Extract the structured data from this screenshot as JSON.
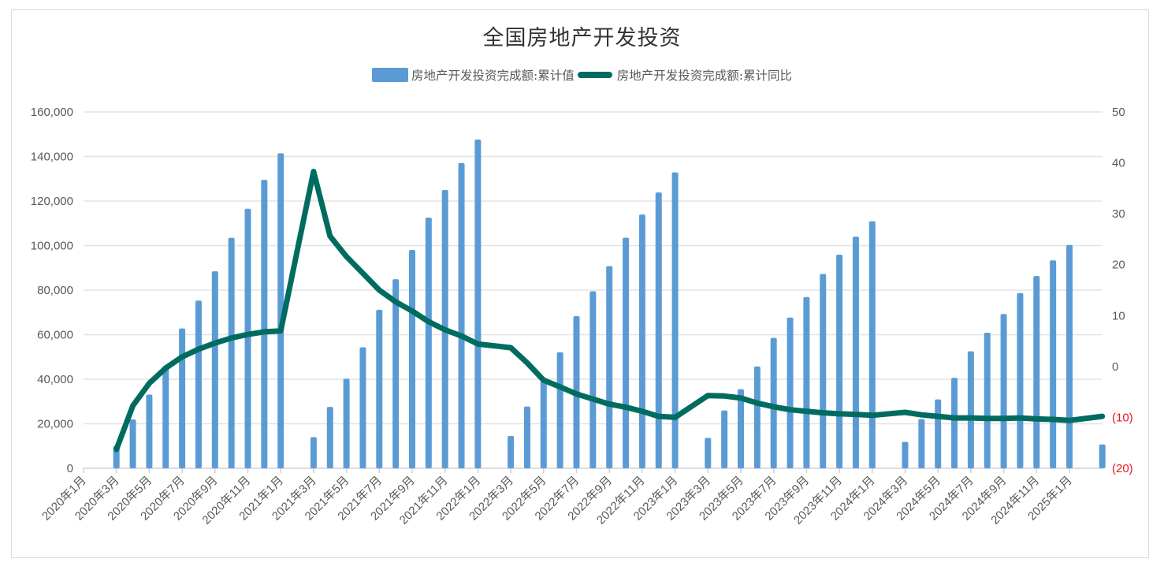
{
  "chart_data": {
    "type": "bar+line",
    "title": "全国房地产开发投资",
    "legend": [
      {
        "label": "房地产开发投资完成额:累计值",
        "kind": "bar",
        "color": "#5b9bd5"
      },
      {
        "label": "房地产开发投资完成额:累计同比",
        "kind": "line",
        "color": "#006c5f"
      }
    ],
    "legend_position": "top",
    "grid": true,
    "left_axis": {
      "ylim": [
        0,
        160000
      ],
      "ticks": [
        "0",
        "20,000",
        "40,000",
        "60,000",
        "80,000",
        "100,000",
        "120,000",
        "140,000",
        "160,000"
      ]
    },
    "right_axis": {
      "ylim": [
        -20,
        50
      ],
      "ticks": [
        "(20)",
        "(10)",
        "0",
        "10",
        "20",
        "30",
        "40",
        "50"
      ],
      "negative_color": "#e0191f"
    },
    "x_tick_labels": [
      "2020年1月",
      "2020年3月",
      "2020年5月",
      "2020年7月",
      "2020年9月",
      "2020年11月",
      "2021年1月",
      "2021年3月",
      "2021年5月",
      "2021年7月",
      "2021年9月",
      "2021年11月",
      "2022年1月",
      "2022年3月",
      "2022年5月",
      "2022年7月",
      "2022年9月",
      "2022年11月",
      "2023年1月",
      "2023年3月",
      "2023年5月",
      "2023年7月",
      "2023年9月",
      "2023年11月",
      "2024年1月",
      "2024年3月",
      "2024年5月",
      "2024年7月",
      "2024年9月",
      "2024年11月",
      "2025年1月"
    ],
    "categories_count": 63,
    "series": [
      {
        "name": "房地产开发投资完成额:累计值",
        "type": "bar",
        "axis": "left",
        "values": [
          null,
          null,
          10115,
          21963,
          33103,
          45920,
          62780,
          75325,
          88454,
          103484,
          116556,
          129492,
          141443,
          null,
          13986,
          27576,
          40240,
          54318,
          71179,
          84895,
          98059,
          112568,
          124934,
          137086,
          147602,
          null,
          14499,
          27765,
          39154,
          52134,
          68314,
          79462,
          90809,
          103559,
          113945,
          123863,
          132895,
          null,
          13669,
          25974,
          35514,
          45701,
          58550,
          67717,
          76900,
          87269,
          95922,
          104045,
          110913,
          null,
          11842,
          22082,
          30928,
          40632,
          52529,
          60877,
          69284,
          78680,
          86309,
          93362,
          100280,
          null,
          10720
        ]
      },
      {
        "name": "房地产开发投资完成额:累计同比",
        "type": "line",
        "axis": "right",
        "values": [
          null,
          null,
          -16.3,
          -7.7,
          -3.3,
          -0.3,
          1.9,
          3.4,
          4.6,
          5.6,
          6.3,
          6.8,
          7.0,
          null,
          38.3,
          25.6,
          21.6,
          18.3,
          15.0,
          12.7,
          10.9,
          8.8,
          7.2,
          6.0,
          4.4,
          null,
          3.7,
          0.7,
          -2.7,
          -4.0,
          -5.4,
          -6.4,
          -7.4,
          -8.0,
          -8.8,
          -9.8,
          -10.0,
          null,
          -5.7,
          -5.8,
          -6.2,
          -7.2,
          -7.9,
          -8.5,
          -8.8,
          -9.1,
          -9.3,
          -9.4,
          -9.6,
          null,
          -9.0,
          -9.5,
          -9.8,
          -10.1,
          -10.1,
          -10.2,
          -10.2,
          -10.1,
          -10.3,
          -10.4,
          -10.6,
          null,
          -9.8
        ]
      }
    ]
  }
}
